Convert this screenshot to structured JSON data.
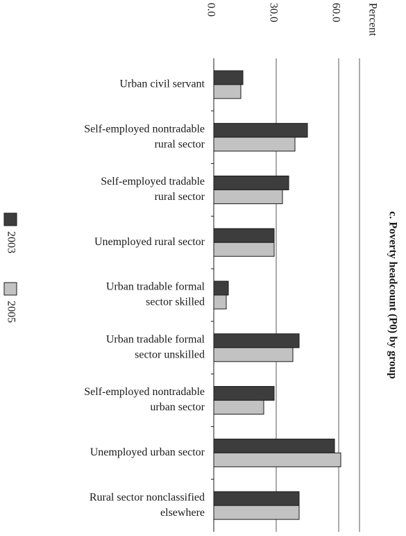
{
  "chart_data": {
    "type": "bar",
    "orientation": "horizontal",
    "title": "c. Poverty headcount (P0) by group",
    "xlabel": "Percent",
    "ylabel": "",
    "xlim": [
      0,
      70
    ],
    "ticks": [
      "0.0",
      "30.0",
      "60.0"
    ],
    "tick_values": [
      0,
      30,
      60
    ],
    "grid": true,
    "legend_position": "left",
    "categories": [
      [
        "Urban civil servant"
      ],
      [
        "Self-employed nontradable",
        "rural sector"
      ],
      [
        "Self-employed tradable",
        "rural sector"
      ],
      [
        "Unemployed rural sector"
      ],
      [
        "Urban tradable formal",
        "sector skilled"
      ],
      [
        "Urban tradable formal",
        "sector unskilled"
      ],
      [
        "Self-employed nontradable",
        "urban sector"
      ],
      [
        "Unemployed urban sector"
      ],
      [
        "Rural sector nonclassified",
        "elsewhere"
      ]
    ],
    "series": [
      {
        "name": "2003",
        "color": "#3d3d3d",
        "values": [
          14,
          45,
          36,
          29,
          7,
          41,
          29,
          58,
          41
        ]
      },
      {
        "name": "2005",
        "color": "#c2c2c2",
        "values": [
          13,
          39,
          33,
          29,
          6,
          38,
          24,
          61,
          41
        ]
      }
    ]
  }
}
